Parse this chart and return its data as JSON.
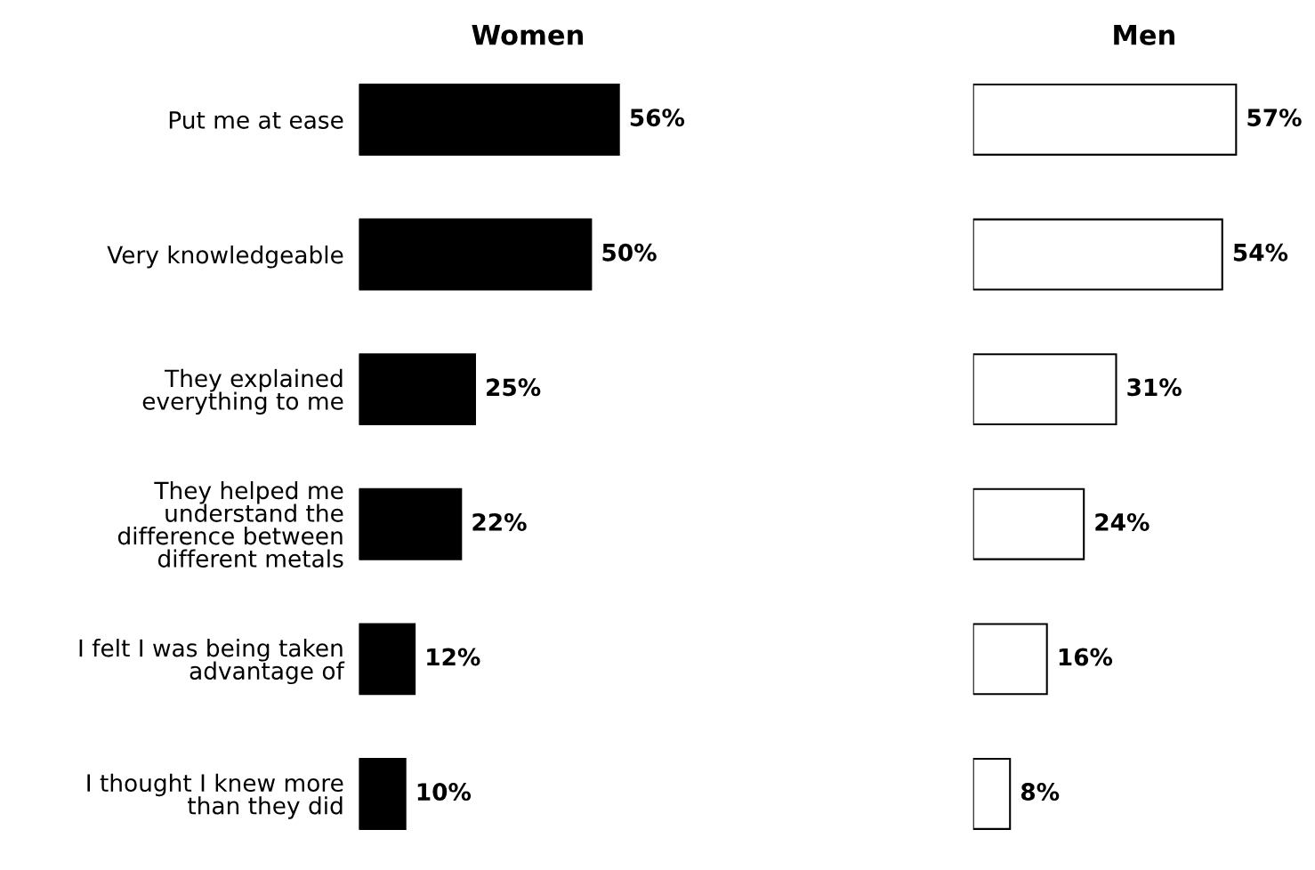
{
  "chart_data": [
    {
      "type": "bar",
      "orientation": "horizontal",
      "title": "Women",
      "categories": [
        "Put me at ease",
        "Very knowledgeable",
        "They explained\neverything to me",
        "They helped me\nunderstand the\ndifference between\ndifferent metals",
        "I felt I was being taken\nadvantage of",
        "I thought I knew more\nthan they did"
      ],
      "values": [
        56,
        50,
        25,
        22,
        12,
        10
      ],
      "value_labels": [
        "56%",
        "50%",
        "25%",
        "22%",
        "12%",
        "10%"
      ],
      "color": "#000000",
      "tick_labels": "y"
    },
    {
      "type": "bar",
      "orientation": "horizontal",
      "title": "Men",
      "categories": [
        null,
        null,
        null,
        null,
        null,
        null
      ],
      "values": [
        57,
        54,
        31,
        24,
        16,
        8
      ],
      "value_labels": [
        "57%",
        "54%",
        "31%",
        "24%",
        "16%",
        "8%"
      ],
      "color": "#ffffff",
      "tick_labels": false
    }
  ]
}
